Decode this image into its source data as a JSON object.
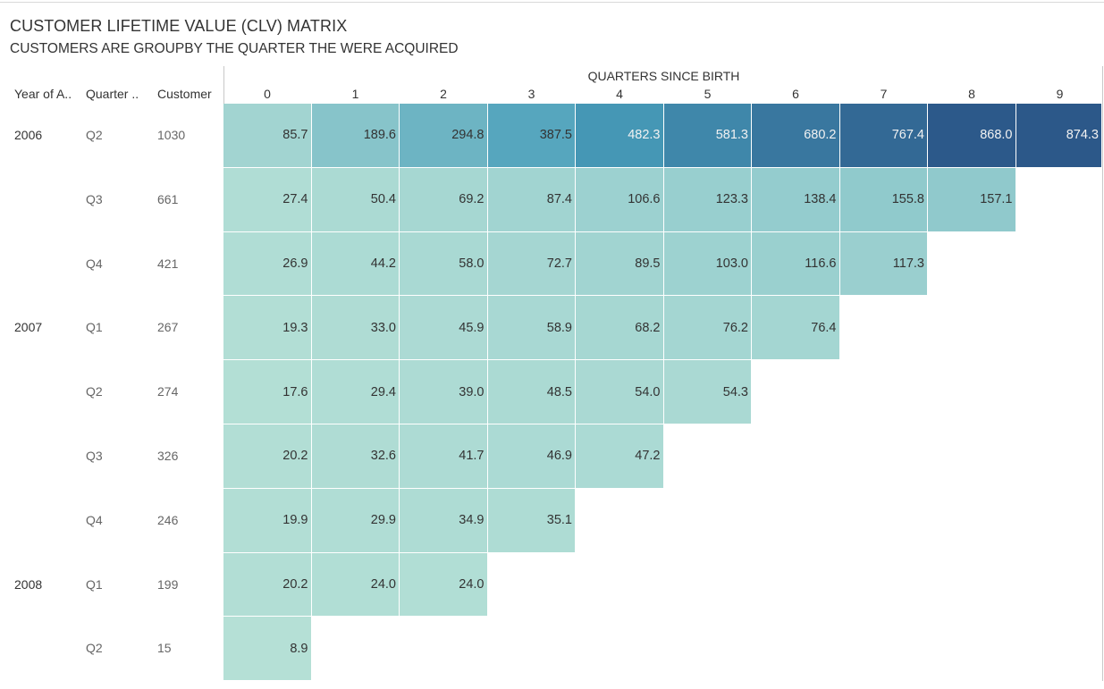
{
  "title": "CUSTOMER LIFETIME VALUE (CLV) MATRIX",
  "subtitle": "CUSTOMERS ARE GROUPBY THE QUARTER THE WERE ACQUIRED",
  "column_title": "QUARTERS SINCE BIRTH",
  "row_headers": [
    "Year of A..",
    "Quarter ..",
    "Customer"
  ],
  "colors": {
    "low": "#b5e0d6",
    "high": "#2c5889",
    "text_dark": "#333333",
    "text_light": "#f2f2f2"
  },
  "chart_data": {
    "type": "heatmap",
    "title": "CUSTOMER LIFETIME VALUE (CLV) MATRIX",
    "subtitle": "CUSTOMERS ARE GROUPBY THE QUARTER THE WERE ACQUIRED",
    "xlabel": "QUARTERS SINCE BIRTH",
    "columns": [
      "0",
      "1",
      "2",
      "3",
      "4",
      "5",
      "6",
      "7",
      "8",
      "9"
    ],
    "rows": [
      {
        "year": "2006",
        "quarter": "Q2",
        "customers": "1030",
        "values": [
          85.7,
          189.6,
          294.8,
          387.5,
          482.3,
          581.3,
          680.2,
          767.4,
          868.0,
          874.3
        ]
      },
      {
        "year": "",
        "quarter": "Q3",
        "customers": "661",
        "values": [
          27.4,
          50.4,
          69.2,
          87.4,
          106.6,
          123.3,
          138.4,
          155.8,
          157.1
        ]
      },
      {
        "year": "",
        "quarter": "Q4",
        "customers": "421",
        "values": [
          26.9,
          44.2,
          58.0,
          72.7,
          89.5,
          103.0,
          116.6,
          117.3
        ]
      },
      {
        "year": "2007",
        "quarter": "Q1",
        "customers": "267",
        "values": [
          19.3,
          33.0,
          45.9,
          58.9,
          68.2,
          76.2,
          76.4
        ]
      },
      {
        "year": "",
        "quarter": "Q2",
        "customers": "274",
        "values": [
          17.6,
          29.4,
          39.0,
          48.5,
          54.0,
          54.3
        ]
      },
      {
        "year": "",
        "quarter": "Q3",
        "customers": "326",
        "values": [
          20.2,
          32.6,
          41.7,
          46.9,
          47.2
        ]
      },
      {
        "year": "",
        "quarter": "Q4",
        "customers": "246",
        "values": [
          19.9,
          29.9,
          34.9,
          35.1
        ]
      },
      {
        "year": "2008",
        "quarter": "Q1",
        "customers": "199",
        "values": [
          20.2,
          24.0,
          24.0
        ]
      },
      {
        "year": "",
        "quarter": "Q2",
        "customers": "15",
        "values": [
          8.9
        ]
      }
    ],
    "value_range": [
      8.9,
      874.3
    ]
  }
}
